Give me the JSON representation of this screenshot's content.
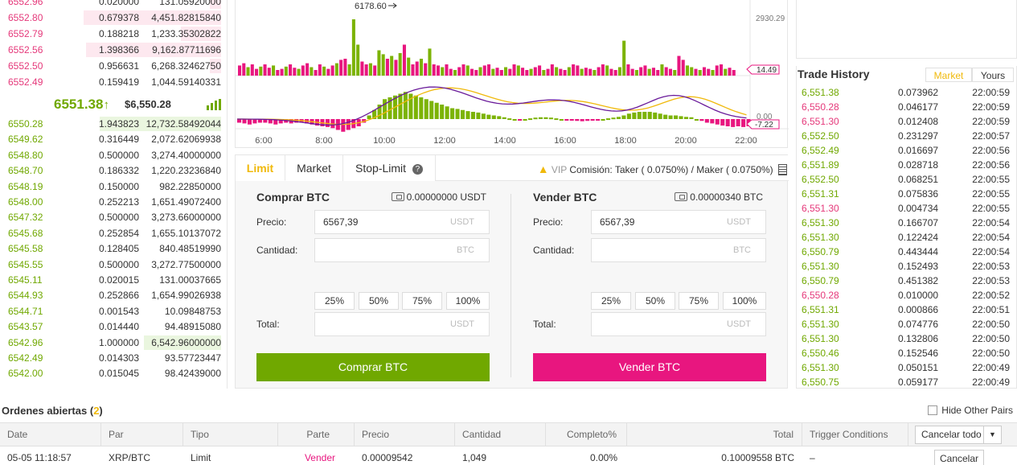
{
  "orderbook": {
    "asks": [
      {
        "price": "6552.96",
        "amount": "0.020000",
        "total": "131.05920000",
        "fill": 0.05
      },
      {
        "price": "6552.80",
        "amount": "0.679378",
        "total": "4,451.82815840",
        "fill": 0.62
      },
      {
        "price": "6552.79",
        "amount": "0.188218",
        "total": "1,233.35302822",
        "fill": 0.18
      },
      {
        "price": "6552.56",
        "amount": "1.398366",
        "total": "9,162.87711696",
        "fill": 0.61
      },
      {
        "price": "6552.50",
        "amount": "0.956631",
        "total": "6,268.32462750",
        "fill": 0.05
      },
      {
        "price": "6552.49",
        "amount": "0.159419",
        "total": "1,044.59140331",
        "fill": 0.0
      }
    ],
    "last_price": "6551.38",
    "last_arrow": "↑",
    "last_usd": "$6,550.28",
    "bids": [
      {
        "price": "6550.28",
        "amount": "1.943823",
        "total": "12,732.58492044",
        "fill": 0.55
      },
      {
        "price": "6549.62",
        "amount": "0.316449",
        "total": "2,072.62069938",
        "fill": 0.0
      },
      {
        "price": "6548.80",
        "amount": "0.500000",
        "total": "3,274.40000000",
        "fill": 0.0
      },
      {
        "price": "6548.70",
        "amount": "0.186332",
        "total": "1,220.23236840",
        "fill": 0.0
      },
      {
        "price": "6548.19",
        "amount": "0.150000",
        "total": "982.22850000",
        "fill": 0.0
      },
      {
        "price": "6548.00",
        "amount": "0.252213",
        "total": "1,651.49072400",
        "fill": 0.0
      },
      {
        "price": "6547.32",
        "amount": "0.500000",
        "total": "3,273.66000000",
        "fill": 0.0
      },
      {
        "price": "6545.68",
        "amount": "0.252854",
        "total": "1,655.10137072",
        "fill": 0.0
      },
      {
        "price": "6545.58",
        "amount": "0.128405",
        "total": "840.48519990",
        "fill": 0.0
      },
      {
        "price": "6545.55",
        "amount": "0.500000",
        "total": "3,272.77500000",
        "fill": 0.0
      },
      {
        "price": "6545.11",
        "amount": "0.020015",
        "total": "131.00037665",
        "fill": 0.0
      },
      {
        "price": "6544.93",
        "amount": "0.252866",
        "total": "1,654.99026938",
        "fill": 0.0
      },
      {
        "price": "6544.71",
        "amount": "0.001543",
        "total": "10.09848753",
        "fill": 0.0
      },
      {
        "price": "6543.57",
        "amount": "0.014440",
        "total": "94.48915080",
        "fill": 0.0
      },
      {
        "price": "6542.96",
        "amount": "1.000000",
        "total": "6,542.96000000",
        "fill": 0.35
      },
      {
        "price": "6542.49",
        "amount": "0.014303",
        "total": "93.57723447",
        "fill": 0.0
      },
      {
        "price": "6542.00",
        "amount": "0.015045",
        "total": "98.42439000",
        "fill": 0.0
      }
    ]
  },
  "chart_data": {
    "type": "bar",
    "x_ticks": [
      "6:00",
      "8:00",
      "10:00",
      "12:00",
      "14:00",
      "16:00",
      "18:00",
      "20:00",
      "22:00"
    ],
    "price_marker": "6178.60",
    "volume_axis_top": "2930.29",
    "volume_last": "14.49",
    "macd_zero": "0.00",
    "macd_last": "-7.22",
    "volume_series": [
      0.18,
      0.22,
      0.15,
      0.2,
      0.12,
      0.16,
      0.2,
      0.14,
      0.18,
      0.1,
      0.12,
      0.16,
      0.2,
      0.14,
      0.12,
      0.18,
      0.22,
      0.15,
      0.1,
      0.2,
      0.16,
      0.12,
      0.18,
      0.22,
      0.28,
      0.3,
      0.2,
      1.0,
      0.55,
      0.25,
      0.2,
      0.22,
      0.18,
      0.45,
      0.38,
      0.3,
      0.35,
      0.28,
      0.4,
      0.55,
      0.32,
      0.2,
      0.25,
      0.3,
      0.22,
      0.48,
      0.2,
      0.18,
      0.15,
      0.2,
      0.12,
      0.1,
      0.15,
      0.2,
      0.18,
      0.12,
      0.1,
      0.15,
      0.18,
      0.2,
      0.12,
      0.14,
      0.1,
      0.15,
      0.12,
      0.2,
      0.18,
      0.14,
      0.1,
      0.12,
      0.15,
      0.18,
      0.1,
      0.12,
      0.2,
      0.15,
      0.12,
      0.1,
      0.15,
      0.2,
      0.18,
      0.12,
      0.14,
      0.12,
      0.1,
      0.15,
      0.2,
      0.18,
      0.12,
      0.1,
      0.15,
      0.62,
      0.2,
      0.12,
      0.1,
      0.15,
      0.18,
      0.12,
      0.14,
      0.1,
      0.2,
      0.15,
      0.12,
      0.1,
      0.35,
      0.28,
      0.18,
      0.15,
      0.12,
      0.1,
      0.15,
      0.12,
      0.1,
      0.18,
      0.2,
      0.12,
      0.14,
      0.1
    ],
    "volume_up": [
      0,
      0,
      1,
      0,
      0,
      1,
      0,
      0,
      1,
      0,
      0,
      1,
      0,
      0,
      1,
      0,
      0,
      1,
      0,
      0,
      1,
      0,
      0,
      1,
      0,
      0,
      1,
      1,
      1,
      0,
      0,
      1,
      0,
      1,
      1,
      0,
      1,
      0,
      1,
      0,
      1,
      0,
      0,
      1,
      0,
      1,
      0,
      0,
      1,
      0,
      0,
      1,
      0,
      0,
      1,
      0,
      0,
      1,
      0,
      0,
      1,
      0,
      0,
      1,
      0,
      0,
      1,
      0,
      0,
      1,
      0,
      0,
      1,
      0,
      0,
      1,
      0,
      0,
      1,
      0,
      0,
      1,
      0,
      0,
      1,
      0,
      0,
      1,
      0,
      0,
      1,
      1,
      0,
      0,
      1,
      0,
      0,
      1,
      0,
      0,
      1,
      0,
      0,
      1,
      0,
      0,
      1,
      1,
      0,
      1,
      0,
      0,
      1,
      0,
      0,
      1,
      0,
      0
    ],
    "macd_hist": [
      -0.1,
      -0.12,
      -0.15,
      -0.12,
      -0.1,
      -0.1,
      -0.12,
      -0.15,
      -0.12,
      -0.1,
      -0.12,
      -0.1,
      -0.1,
      -0.12,
      -0.15,
      -0.18,
      -0.2,
      -0.22,
      -0.25,
      -0.3,
      -0.35,
      -0.3,
      -0.25,
      -0.2,
      -0.1,
      0.1,
      0.25,
      0.4,
      0.55,
      0.6,
      0.65,
      0.7,
      0.75,
      0.7,
      0.65,
      0.6,
      0.55,
      0.5,
      0.45,
      0.4,
      0.35,
      0.3,
      0.28,
      0.25,
      0.22,
      0.2,
      0.18,
      0.15,
      0.12,
      0.1,
      0.08,
      0.05,
      0.02,
      0.0,
      -0.02,
      0.0,
      0.02,
      0.04,
      0.05,
      0.05,
      0.04,
      0.02,
      0.0,
      -0.02,
      -0.04,
      -0.05,
      -0.06,
      -0.05,
      -0.04,
      -0.02,
      0.0,
      0.02,
      0.04,
      0.06,
      0.1,
      0.15,
      0.18,
      0.2,
      0.2,
      0.2,
      0.18,
      0.15,
      0.12,
      0.1,
      0.1,
      0.08,
      0.06,
      0.05,
      0.0,
      -0.05,
      -0.1,
      -0.12,
      -0.15,
      -0.18,
      -0.2,
      -0.22,
      -0.2,
      -0.22,
      -0.2
    ]
  },
  "tabs": {
    "limit": "Limit",
    "market": "Market",
    "stop_limit": "Stop-Limit"
  },
  "fee": {
    "vip": "VIP",
    "label": "Comisión:",
    "taker_label": "Taker",
    "taker": "( 0.0750%)",
    "sep": "/",
    "maker_label": "Maker",
    "maker": "( 0.0750%)"
  },
  "buy": {
    "title": "Comprar BTC",
    "balance": "0.00000000 USDT",
    "price_label": "Precio:",
    "price_value": "6567,39",
    "price_unit": "USDT",
    "amount_label": "Cantidad:",
    "amount_unit": "BTC",
    "total_label": "Total:",
    "total_unit": "USDT",
    "pcts": [
      "25%",
      "50%",
      "75%",
      "100%"
    ],
    "button": "Comprar BTC"
  },
  "sell": {
    "title": "Vender BTC",
    "balance": "0.00000340 BTC",
    "price_label": "Precio:",
    "price_value": "6567,39",
    "price_unit": "USDT",
    "amount_label": "Cantidad:",
    "amount_unit": "BTC",
    "total_label": "Total:",
    "total_unit": "USDT",
    "pcts": [
      "25%",
      "50%",
      "75%",
      "100%"
    ],
    "button": "Vender BTC"
  },
  "trade_history": {
    "title": "Trade History",
    "tab_market": "Market",
    "tab_yours": "Yours",
    "rows": [
      {
        "price": "6,551.38",
        "amount": "0.073962",
        "time": "22:00:59",
        "dir": "up"
      },
      {
        "price": "6,550.28",
        "amount": "0.046177",
        "time": "22:00:59",
        "dir": "dn"
      },
      {
        "price": "6,551.30",
        "amount": "0.012408",
        "time": "22:00:59",
        "dir": "dn"
      },
      {
        "price": "6,552.50",
        "amount": "0.231297",
        "time": "22:00:57",
        "dir": "up"
      },
      {
        "price": "6,552.49",
        "amount": "0.016697",
        "time": "22:00:56",
        "dir": "up"
      },
      {
        "price": "6,551.89",
        "amount": "0.028718",
        "time": "22:00:56",
        "dir": "up"
      },
      {
        "price": "6,552.50",
        "amount": "0.068251",
        "time": "22:00:55",
        "dir": "up"
      },
      {
        "price": "6,551.31",
        "amount": "0.075836",
        "time": "22:00:55",
        "dir": "up"
      },
      {
        "price": "6,551.30",
        "amount": "0.004734",
        "time": "22:00:55",
        "dir": "dn"
      },
      {
        "price": "6,551.30",
        "amount": "0.166707",
        "time": "22:00:54",
        "dir": "up"
      },
      {
        "price": "6,551.30",
        "amount": "0.122424",
        "time": "22:00:54",
        "dir": "up"
      },
      {
        "price": "6,550.79",
        "amount": "0.443444",
        "time": "22:00:54",
        "dir": "up"
      },
      {
        "price": "6,551.30",
        "amount": "0.152493",
        "time": "22:00:53",
        "dir": "up"
      },
      {
        "price": "6,550.79",
        "amount": "0.451382",
        "time": "22:00:53",
        "dir": "up"
      },
      {
        "price": "6,550.28",
        "amount": "0.010000",
        "time": "22:00:52",
        "dir": "dn"
      },
      {
        "price": "6,551.31",
        "amount": "0.000866",
        "time": "22:00:51",
        "dir": "up"
      },
      {
        "price": "6,551.30",
        "amount": "0.074776",
        "time": "22:00:50",
        "dir": "up"
      },
      {
        "price": "6,551.30",
        "amount": "0.132806",
        "time": "22:00:50",
        "dir": "up"
      },
      {
        "price": "6,550.46",
        "amount": "0.152546",
        "time": "22:00:50",
        "dir": "up"
      },
      {
        "price": "6,551.30",
        "amount": "0.050151",
        "time": "22:00:49",
        "dir": "up"
      },
      {
        "price": "6,550.75",
        "amount": "0.059177",
        "time": "22:00:49",
        "dir": "up"
      }
    ]
  },
  "open_orders": {
    "title": "Ordenes abiertas",
    "count_open": "(",
    "count": "2",
    "count_close": ")",
    "hide_label": "Hide Other Pairs",
    "columns": {
      "date": "Date",
      "pair": "Par",
      "type": "Tipo",
      "side": "Parte",
      "price": "Precio",
      "amount": "Cantidad",
      "filled": "Completo%",
      "total": "Total",
      "trigger": "Trigger Conditions"
    },
    "cancel_all": "Cancelar todo",
    "rows": [
      {
        "date": "05-05 11:18:57",
        "pair": "XRP/BTC",
        "type": "Limit",
        "side": "Vender",
        "price": "0.00009542",
        "amount": "1,049",
        "filled": "0.00%",
        "total": "0.10009558 BTC",
        "trigger": "–",
        "cancel": "Cancelar"
      }
    ]
  },
  "colors": {
    "up": "#70a800",
    "down": "#e8167f",
    "accent": "#f0b90b"
  }
}
